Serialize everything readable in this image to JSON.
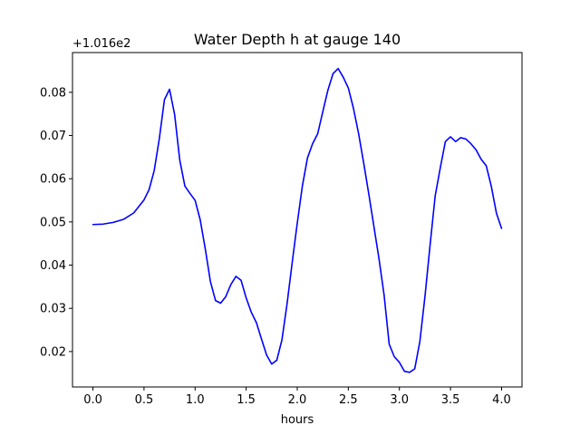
{
  "chart_data": {
    "type": "line",
    "title": "Water Depth h at gauge 140",
    "xlabel": "hours",
    "ylabel": "",
    "offset_label": "+1.016e2",
    "xlim": [
      -0.2,
      4.2
    ],
    "ylim": [
      0.0118,
      0.0892
    ],
    "xticks": [
      0.0,
      0.5,
      1.0,
      1.5,
      2.0,
      2.5,
      3.0,
      3.5,
      4.0
    ],
    "xtick_labels": [
      "0.0",
      "0.5",
      "1.0",
      "1.5",
      "2.0",
      "2.5",
      "3.0",
      "3.5",
      "4.0"
    ],
    "yticks": [
      0.02,
      0.03,
      0.04,
      0.05,
      0.06,
      0.07,
      0.08
    ],
    "ytick_labels": [
      "0.02",
      "0.03",
      "0.04",
      "0.05",
      "0.06",
      "0.07",
      "0.08"
    ],
    "grid": false,
    "legend": "none",
    "line_color": "#0000ff",
    "series": [
      {
        "name": "",
        "x": [
          0.0,
          0.1,
          0.2,
          0.3,
          0.4,
          0.5,
          0.55,
          0.6,
          0.65,
          0.7,
          0.75,
          0.8,
          0.85,
          0.9,
          0.95,
          1.0,
          1.05,
          1.1,
          1.15,
          1.2,
          1.25,
          1.3,
          1.35,
          1.4,
          1.45,
          1.5,
          1.55,
          1.6,
          1.65,
          1.7,
          1.75,
          1.8,
          1.85,
          1.9,
          1.95,
          2.0,
          2.05,
          2.1,
          2.15,
          2.2,
          2.25,
          2.3,
          2.35,
          2.4,
          2.45,
          2.5,
          2.55,
          2.6,
          2.65,
          2.7,
          2.75,
          2.8,
          2.85,
          2.9,
          2.95,
          3.0,
          3.05,
          3.1,
          3.15,
          3.2,
          3.25,
          3.3,
          3.35,
          3.4,
          3.45,
          3.5,
          3.55,
          3.6,
          3.65,
          3.7,
          3.75,
          3.8,
          3.85,
          3.9,
          3.95,
          4.0
        ],
        "values": [
          0.0494,
          0.0495,
          0.0499,
          0.0506,
          0.0521,
          0.0551,
          0.0575,
          0.0619,
          0.0693,
          0.0783,
          0.0807,
          0.0748,
          0.0643,
          0.0583,
          0.0566,
          0.055,
          0.0505,
          0.0437,
          0.0362,
          0.0318,
          0.0312,
          0.0327,
          0.0355,
          0.0374,
          0.0365,
          0.0324,
          0.0291,
          0.0267,
          0.0229,
          0.0192,
          0.0171,
          0.018,
          0.0227,
          0.031,
          0.0405,
          0.0497,
          0.0583,
          0.0648,
          0.0681,
          0.0704,
          0.0755,
          0.0805,
          0.0843,
          0.0855,
          0.0835,
          0.081,
          0.0763,
          0.0705,
          0.0637,
          0.0565,
          0.049,
          0.0415,
          0.0331,
          0.0217,
          0.0188,
          0.0175,
          0.0154,
          0.0152,
          0.016,
          0.0223,
          0.0327,
          0.0446,
          0.056,
          0.0625,
          0.0686,
          0.0697,
          0.0686,
          0.0695,
          0.0692,
          0.0681,
          0.0667,
          0.0645,
          0.063,
          0.0582,
          0.052,
          0.0485
        ]
      }
    ]
  }
}
